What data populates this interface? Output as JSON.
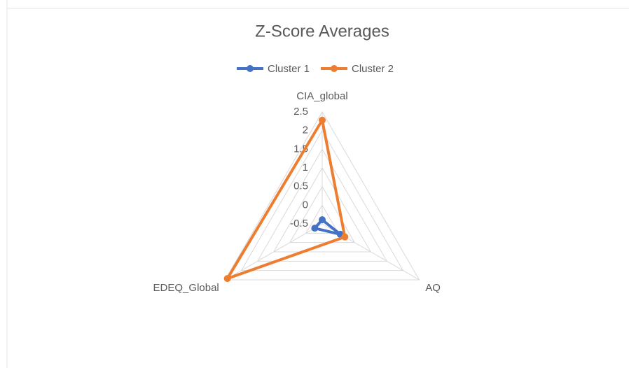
{
  "chart_data": {
    "type": "radar",
    "title": "Z-Score Averages",
    "categories": [
      "CIA_global",
      "AQ",
      "EDEQ_Global"
    ],
    "series": [
      {
        "name": "Cluster 1",
        "color": "#4472c4",
        "values": [
          -0.39,
          0.06,
          -0.27
        ]
      },
      {
        "name": "Cluster 2",
        "color": "#ed7d31",
        "values": [
          2.28,
          0.2,
          2.43
        ]
      }
    ],
    "ylim": [
      -0.5,
      2.5
    ],
    "yticks": [
      -0.5,
      0,
      0.5,
      1,
      1.5,
      2,
      2.5
    ],
    "grid": true,
    "legend": "top"
  }
}
